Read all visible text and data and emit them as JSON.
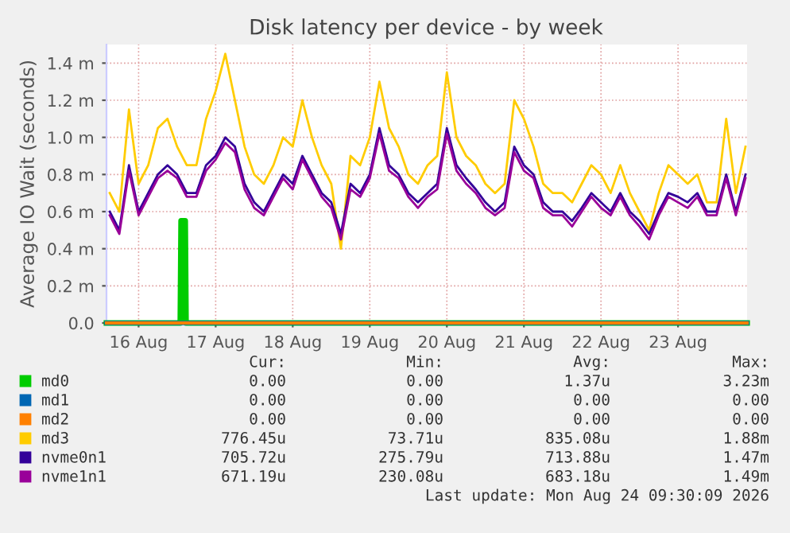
{
  "chart_data": {
    "type": "line",
    "title": "Disk latency per device - by week",
    "ylabel": "Average IO Wait (seconds)",
    "x": [
      "2026-08-16T03:00",
      "2026-08-16T06:00",
      "2026-08-16T09:00",
      "2026-08-16T12:00",
      "2026-08-16T15:00",
      "2026-08-16T18:00",
      "2026-08-16T21:00",
      "2026-08-17T00:00",
      "2026-08-17T03:00",
      "2026-08-17T06:00",
      "2026-08-17T09:00",
      "2026-08-17T12:00",
      "2026-08-17T15:00",
      "2026-08-17T18:00",
      "2026-08-17T21:00",
      "2026-08-18T00:00",
      "2026-08-18T03:00",
      "2026-08-18T06:00",
      "2026-08-18T09:00",
      "2026-08-18T12:00",
      "2026-08-18T15:00",
      "2026-08-18T18:00",
      "2026-08-18T21:00",
      "2026-08-19T00:00",
      "2026-08-19T03:00",
      "2026-08-19T06:00",
      "2026-08-19T09:00",
      "2026-08-19T12:00",
      "2026-08-19T15:00",
      "2026-08-19T18:00",
      "2026-08-19T21:00",
      "2026-08-20T00:00",
      "2026-08-20T03:00",
      "2026-08-20T06:00",
      "2026-08-20T09:00",
      "2026-08-20T12:00",
      "2026-08-20T15:00",
      "2026-08-20T18:00",
      "2026-08-20T21:00",
      "2026-08-21T00:00",
      "2026-08-21T03:00",
      "2026-08-21T06:00",
      "2026-08-21T09:00",
      "2026-08-21T12:00",
      "2026-08-21T15:00",
      "2026-08-21T18:00",
      "2026-08-21T21:00",
      "2026-08-22T00:00",
      "2026-08-22T03:00",
      "2026-08-22T06:00",
      "2026-08-22T09:00",
      "2026-08-22T12:00",
      "2026-08-22T15:00",
      "2026-08-22T18:00",
      "2026-08-22T21:00",
      "2026-08-23T00:00",
      "2026-08-23T03:00",
      "2026-08-23T06:00",
      "2026-08-23T09:00",
      "2026-08-23T12:00",
      "2026-08-23T15:00",
      "2026-08-23T18:00",
      "2026-08-23T21:00",
      "2026-08-24T00:00",
      "2026-08-24T03:00",
      "2026-08-24T06:00",
      "2026-08-24T09:00"
    ],
    "series": [
      {
        "name": "md0",
        "color": "#00cc00",
        "x": [
          "2026-08-16T02:00",
          "2026-08-17T01:00",
          "2026-08-17T01:15",
          "2026-08-17T02:30",
          "2026-08-17T02:45",
          "2026-08-24T09:30"
        ],
        "values": [
          0,
          0,
          0.55,
          0.55,
          0,
          0
        ]
      },
      {
        "name": "md1",
        "color": "#0066b3",
        "x": [
          "2026-08-16T02:00",
          "2026-08-24T09:30"
        ],
        "values": [
          0,
          0
        ]
      },
      {
        "name": "md2",
        "color": "#ff8000",
        "x": [
          "2026-08-16T02:00",
          "2026-08-24T09:30"
        ],
        "values": [
          0,
          0
        ]
      },
      {
        "name": "md3",
        "color": "#ffcc00",
        "values": [
          0.7,
          0.6,
          1.15,
          0.75,
          0.85,
          1.05,
          1.1,
          0.95,
          0.85,
          0.85,
          1.1,
          1.25,
          1.45,
          1.2,
          0.95,
          0.8,
          0.75,
          0.85,
          1.0,
          0.95,
          1.2,
          1.0,
          0.85,
          0.75,
          0.4,
          0.9,
          0.85,
          1.0,
          1.3,
          1.05,
          0.95,
          0.8,
          0.75,
          0.85,
          0.9,
          1.35,
          1.0,
          0.9,
          0.85,
          0.75,
          0.7,
          0.75,
          1.2,
          1.1,
          0.95,
          0.75,
          0.7,
          0.7,
          0.65,
          0.75,
          0.85,
          0.8,
          0.7,
          0.85,
          0.7,
          0.6,
          0.5,
          0.7,
          0.85,
          0.8,
          0.75,
          0.8,
          0.65,
          0.65,
          1.1,
          0.7,
          0.95
        ]
      },
      {
        "name": "nvme0n1",
        "color": "#330099",
        "values": [
          0.6,
          0.5,
          0.85,
          0.6,
          0.7,
          0.8,
          0.85,
          0.8,
          0.7,
          0.7,
          0.85,
          0.9,
          1.0,
          0.95,
          0.75,
          0.65,
          0.6,
          0.7,
          0.8,
          0.75,
          0.9,
          0.8,
          0.7,
          0.65,
          0.48,
          0.75,
          0.7,
          0.8,
          1.05,
          0.85,
          0.8,
          0.7,
          0.65,
          0.7,
          0.75,
          1.05,
          0.85,
          0.78,
          0.72,
          0.65,
          0.6,
          0.65,
          0.95,
          0.85,
          0.8,
          0.65,
          0.6,
          0.6,
          0.55,
          0.62,
          0.7,
          0.65,
          0.6,
          0.7,
          0.6,
          0.55,
          0.48,
          0.6,
          0.7,
          0.68,
          0.65,
          0.7,
          0.6,
          0.6,
          0.8,
          0.6,
          0.8
        ]
      },
      {
        "name": "nvme1n1",
        "color": "#990099",
        "values": [
          0.58,
          0.48,
          0.82,
          0.58,
          0.68,
          0.78,
          0.82,
          0.78,
          0.68,
          0.68,
          0.82,
          0.88,
          0.97,
          0.92,
          0.72,
          0.62,
          0.58,
          0.68,
          0.78,
          0.72,
          0.88,
          0.78,
          0.68,
          0.62,
          0.45,
          0.72,
          0.68,
          0.78,
          1.02,
          0.82,
          0.78,
          0.68,
          0.62,
          0.68,
          0.72,
          1.02,
          0.82,
          0.75,
          0.7,
          0.62,
          0.58,
          0.62,
          0.92,
          0.82,
          0.78,
          0.62,
          0.58,
          0.58,
          0.52,
          0.6,
          0.68,
          0.62,
          0.58,
          0.68,
          0.58,
          0.52,
          0.45,
          0.58,
          0.68,
          0.65,
          0.62,
          0.68,
          0.58,
          0.58,
          0.78,
          0.58,
          0.78
        ]
      }
    ],
    "xlim": [
      "2026-08-16T02:00",
      "2026-08-24T09:30"
    ],
    "xticks": [
      {
        "value": "2026-08-16T12:00",
        "label": "16 Aug"
      },
      {
        "value": "2026-08-17T12:00",
        "label": "17 Aug"
      },
      {
        "value": "2026-08-18T12:00",
        "label": "18 Aug"
      },
      {
        "value": "2026-08-19T12:00",
        "label": "19 Aug"
      },
      {
        "value": "2026-08-20T12:00",
        "label": "20 Aug"
      },
      {
        "value": "2026-08-21T12:00",
        "label": "21 Aug"
      },
      {
        "value": "2026-08-22T12:00",
        "label": "22 Aug"
      },
      {
        "value": "2026-08-23T12:00",
        "label": "23 Aug"
      }
    ],
    "ylim": [
      0,
      1.5
    ],
    "yticks": [
      {
        "value": 0,
        "label": "0.0"
      },
      {
        "value": 0.2,
        "label": "0.2 m"
      },
      {
        "value": 0.4,
        "label": "0.4 m"
      },
      {
        "value": 0.6,
        "label": "0.6 m"
      },
      {
        "value": 0.8,
        "label": "0.8 m"
      },
      {
        "value": 1.0,
        "label": "1.0 m"
      },
      {
        "value": 1.2,
        "label": "1.2 m"
      },
      {
        "value": 1.4,
        "label": "1.4 m"
      }
    ],
    "grid": true,
    "legend": "bottom left",
    "marker": "none",
    "line_style": "solid",
    "annotations": [
      "Cur:",
      "Min:",
      "Avg:",
      "Max:",
      "0.00",
      "0.00",
      "1.37u",
      "3.23m",
      "0.00",
      "0.00",
      "0.00",
      "0.00",
      "0.00",
      "0.00",
      "0.00",
      "0.00",
      "776.45u",
      "73.71u",
      "835.08u",
      "1.88m",
      "705.72u",
      "275.79u",
      "713.88u",
      "1.47m",
      "671.19u",
      "230.08u",
      "683.18u",
      "1.49m",
      "Last update: Mon Aug 24 09:30:09 2026"
    ]
  }
}
